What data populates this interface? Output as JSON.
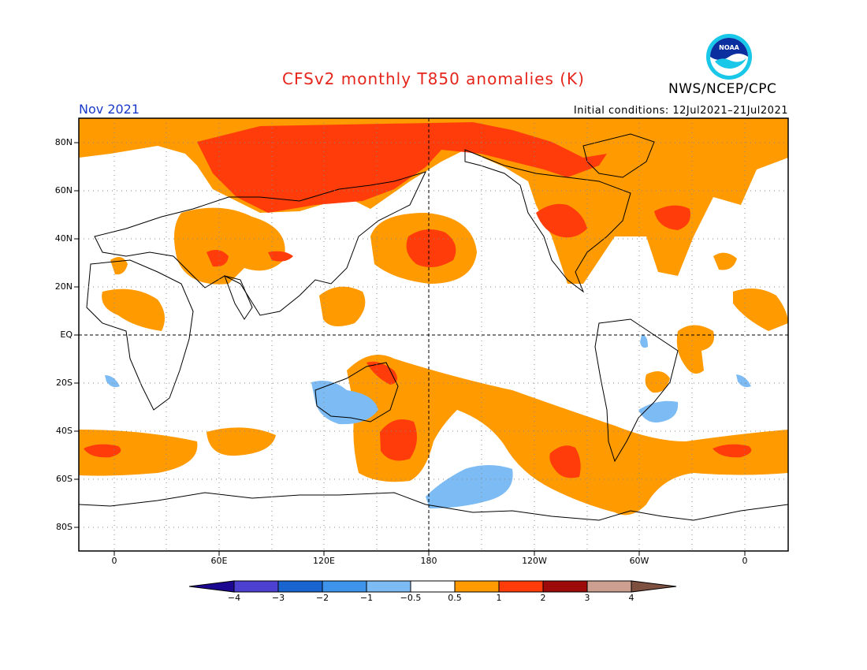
{
  "header": {
    "title": "CFSv2 monthly T850 anomalies (K)",
    "org": "NWS/NCEP/CPC",
    "logo_text": "NOAA",
    "month": "Nov 2021",
    "initial_conditions": "Initial conditions: 12Jul2021–21Jul2021"
  },
  "axes": {
    "lat_labels": [
      "80N",
      "60N",
      "40N",
      "20N",
      "EQ",
      "20S",
      "40S",
      "60S",
      "80S"
    ],
    "lon_labels": [
      "0",
      "60E",
      "120E",
      "180",
      "120W",
      "60W",
      "0"
    ]
  },
  "colorbar": {
    "labels": [
      "−4",
      "−3",
      "−2",
      "−1",
      "−0.5",
      "0.5",
      "1",
      "2",
      "3",
      "4"
    ],
    "colors": [
      "#1c0890",
      "#4d3fd0",
      "#1a64cf",
      "#3d94ea",
      "#7cbbf4",
      "#ffffff",
      "#ff9a00",
      "#ff3c0a",
      "#9c0a0a",
      "#cc9f90",
      "#7d5040"
    ]
  },
  "colors": {
    "warm_05_1": "#ff9a00",
    "warm_1_2": "#ff3c0a",
    "cool_m05": "#7cbbf4",
    "title": "#e5251b",
    "month": "#1b39c8"
  }
}
